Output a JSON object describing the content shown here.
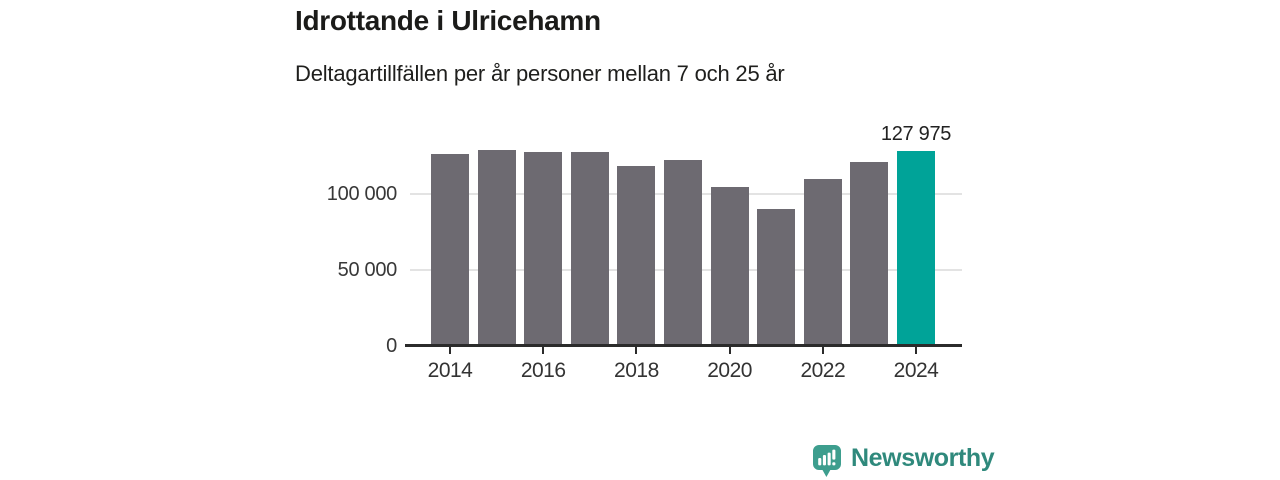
{
  "header": {
    "title": "Idrottande i Ulricehamn",
    "subtitle": "Deltagartillfällen per år personer mellan 7 och 25 år"
  },
  "chart_data": {
    "type": "bar",
    "title": "Idrottande i Ulricehamn",
    "subtitle": "Deltagartillfällen per år personer mellan 7 och 25 år",
    "categories": [
      2014,
      2015,
      2016,
      2017,
      2018,
      2019,
      2020,
      2021,
      2022,
      2023,
      2024
    ],
    "values": [
      126500,
      129000,
      127500,
      127500,
      118500,
      122500,
      104500,
      90000,
      110000,
      121000,
      127975
    ],
    "highlight_index": 10,
    "highlight_label": "127 975",
    "xlabel": "",
    "ylabel": "",
    "ylim": [
      0,
      135500
    ],
    "yticks": [
      {
        "value": 0,
        "label": "0"
      },
      {
        "value": 50000,
        "label": "50 000"
      },
      {
        "value": 100000,
        "label": "100 000"
      }
    ],
    "xticks": [
      {
        "value": 2014,
        "label": "2014"
      },
      {
        "value": 2016,
        "label": "2016"
      },
      {
        "value": 2018,
        "label": "2018"
      },
      {
        "value": 2020,
        "label": "2020"
      },
      {
        "value": 2022,
        "label": "2022"
      },
      {
        "value": 2024,
        "label": "2024"
      }
    ],
    "grid": true,
    "legend": false,
    "colors": {
      "bar": "#6d6a71",
      "highlight": "#00a398",
      "grid": "#e3e3e3",
      "axis": "#2b2b2b",
      "tick_text": "#383838"
    }
  },
  "footer": {
    "brand": "Newsworthy",
    "brand_color": "#2f897c",
    "icon_color": "#3d9e8e",
    "icon": "newsworthy-bubble-chart-icon"
  }
}
